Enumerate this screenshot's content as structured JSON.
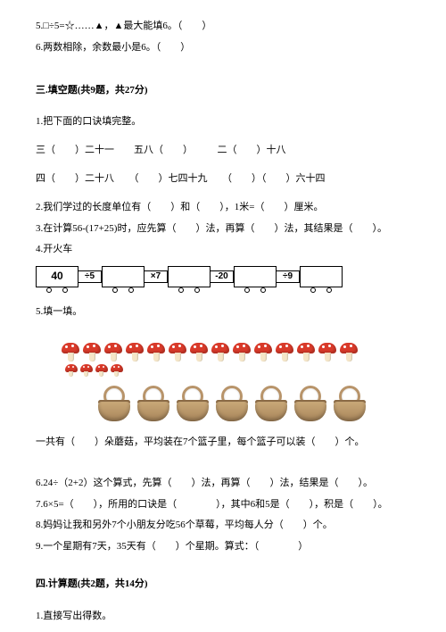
{
  "q5": "5.□÷5=☆……▲，▲最大能填6。（　　）",
  "q6": "6.两数相除，余数最小是6。（　　）",
  "section3_title": "三.填空题(共9题，共27分)",
  "s3q1": "1.把下面的口诀填完整。",
  "s3q1_line1": "三（　　）二十一　　五八（　　）　　　二（　　）十八",
  "s3q1_line2": "四（　　）二十八　　（　　）七四十九　　（　　）（　　）六十四",
  "s3q2": "2.我们学过的长度单位有（　　）和（　　），1米=（　　）厘米。",
  "s3q3": "3.在计算56-(17+25)时，应先算（　　）法，再算（　　）法，其结果是（　　）。",
  "s3q4": "4.开火车",
  "train": {
    "start": "40",
    "ops": [
      "÷5",
      "×7",
      "-20",
      "÷9"
    ]
  },
  "s3q5": "5.填一填。",
  "mushrooms_big": 14,
  "mushrooms_small": 4,
  "baskets": 7,
  "s3q5_text": "一共有（　　）朵蘑菇，平均装在7个篮子里，每个篮子可以装（　　）个。",
  "s3q6": "6.24÷（2+2）这个算式，先算（　　）法，再算（　　）法，结果是（　　）。",
  "s3q7": "7.6×5=（　　），所用的口诀是（　　　　），其中6和5是（　　），积是（　　）。",
  "s3q8": "8.妈妈让我和另外7个小朋友分吃56个草莓，平均每人分（　　）个。",
  "s3q9": "9.一个星期有7天，35天有（　　）个星期。算式：（　　　　）",
  "section4_title": "四.计算题(共2题，共14分)",
  "s4q1": "1.直接写出得数。"
}
